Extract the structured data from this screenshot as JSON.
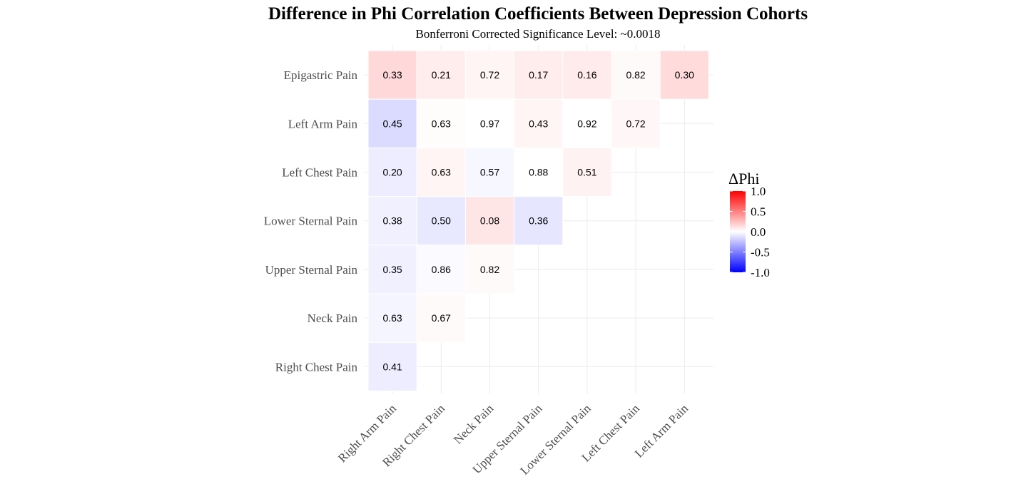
{
  "chart_data": {
    "type": "heatmap",
    "title": "Difference in Phi Correlation Coefficients Between Depression Cohorts",
    "subtitle": "Bonferroni Corrected Significance Level: ~0.0018",
    "x_categories": [
      "Right Arm Pain",
      "Right Chest Pain",
      "Neck Pain",
      "Upper Sternal Pain",
      "Lower Sternal Pain",
      "Left Chest Pain",
      "Left Arm Pain"
    ],
    "y_categories": [
      "Epigastric Pain",
      "Left Arm Pain",
      "Left Chest Pain",
      "Lower Sternal Pain",
      "Upper Sternal Pain",
      "Neck Pain",
      "Right Chest Pain"
    ],
    "cells": [
      {
        "x": "Right Arm Pain",
        "y": "Epigastric Pain",
        "delta_phi": 0.15,
        "label": "0.33"
      },
      {
        "x": "Right Chest Pain",
        "y": "Epigastric Pain",
        "delta_phi": 0.07,
        "label": "0.21"
      },
      {
        "x": "Neck Pain",
        "y": "Epigastric Pain",
        "delta_phi": 0.04,
        "label": "0.72"
      },
      {
        "x": "Upper Sternal Pain",
        "y": "Epigastric Pain",
        "delta_phi": 0.07,
        "label": "0.17"
      },
      {
        "x": "Lower Sternal Pain",
        "y": "Epigastric Pain",
        "delta_phi": 0.08,
        "label": "0.16"
      },
      {
        "x": "Left Chest Pain",
        "y": "Epigastric Pain",
        "delta_phi": 0.02,
        "label": "0.82"
      },
      {
        "x": "Left Arm Pain",
        "y": "Epigastric Pain",
        "delta_phi": 0.14,
        "label": "0.30"
      },
      {
        "x": "Right Arm Pain",
        "y": "Left Arm Pain",
        "delta_phi": -0.14,
        "label": "0.45"
      },
      {
        "x": "Right Chest Pain",
        "y": "Left Arm Pain",
        "delta_phi": 0.01,
        "label": "0.63"
      },
      {
        "x": "Neck Pain",
        "y": "Left Arm Pain",
        "delta_phi": 0.0,
        "label": "0.97"
      },
      {
        "x": "Upper Sternal Pain",
        "y": "Left Arm Pain",
        "delta_phi": 0.04,
        "label": "0.43"
      },
      {
        "x": "Lower Sternal Pain",
        "y": "Left Arm Pain",
        "delta_phi": 0.0,
        "label": "0.92"
      },
      {
        "x": "Left Chest Pain",
        "y": "Left Arm Pain",
        "delta_phi": 0.03,
        "label": "0.72"
      },
      {
        "x": "Right Arm Pain",
        "y": "Left Chest Pain",
        "delta_phi": -0.07,
        "label": "0.20"
      },
      {
        "x": "Right Chest Pain",
        "y": "Left Chest Pain",
        "delta_phi": 0.04,
        "label": "0.63"
      },
      {
        "x": "Neck Pain",
        "y": "Left Chest Pain",
        "delta_phi": -0.03,
        "label": "0.57"
      },
      {
        "x": "Upper Sternal Pain",
        "y": "Left Chest Pain",
        "delta_phi": 0.0,
        "label": "0.88"
      },
      {
        "x": "Lower Sternal Pain",
        "y": "Left Chest Pain",
        "delta_phi": 0.05,
        "label": "0.51"
      },
      {
        "x": "Right Arm Pain",
        "y": "Lower Sternal Pain",
        "delta_phi": -0.06,
        "label": "0.38"
      },
      {
        "x": "Right Chest Pain",
        "y": "Lower Sternal Pain",
        "delta_phi": -0.09,
        "label": "0.50"
      },
      {
        "x": "Neck Pain",
        "y": "Lower Sternal Pain",
        "delta_phi": 0.1,
        "label": "0.08"
      },
      {
        "x": "Upper Sternal Pain",
        "y": "Lower Sternal Pain",
        "delta_phi": -0.1,
        "label": "0.36"
      },
      {
        "x": "Right Arm Pain",
        "y": "Upper Sternal Pain",
        "delta_phi": -0.06,
        "label": "0.35"
      },
      {
        "x": "Right Chest Pain",
        "y": "Upper Sternal Pain",
        "delta_phi": -0.02,
        "label": "0.86"
      },
      {
        "x": "Neck Pain",
        "y": "Upper Sternal Pain",
        "delta_phi": 0.02,
        "label": "0.82"
      },
      {
        "x": "Right Arm Pain",
        "y": "Neck Pain",
        "delta_phi": -0.04,
        "label": "0.63"
      },
      {
        "x": "Right Chest Pain",
        "y": "Neck Pain",
        "delta_phi": 0.02,
        "label": "0.67"
      },
      {
        "x": "Right Arm Pain",
        "y": "Right Chest Pain",
        "delta_phi": -0.07,
        "label": "0.41"
      }
    ],
    "legend": {
      "title": "ΔPhi",
      "ticks": [
        "1.0",
        "0.5",
        "0.0",
        "-0.5",
        "-1.0"
      ],
      "tick_values": [
        1.0,
        0.5,
        0.0,
        -0.5,
        -1.0
      ],
      "range": [
        -1.0,
        1.0
      ],
      "low_color": "#0000ff",
      "mid_color": "#ffffff",
      "high_color": "#ff0000",
      "placement": "right"
    },
    "grid": true
  }
}
